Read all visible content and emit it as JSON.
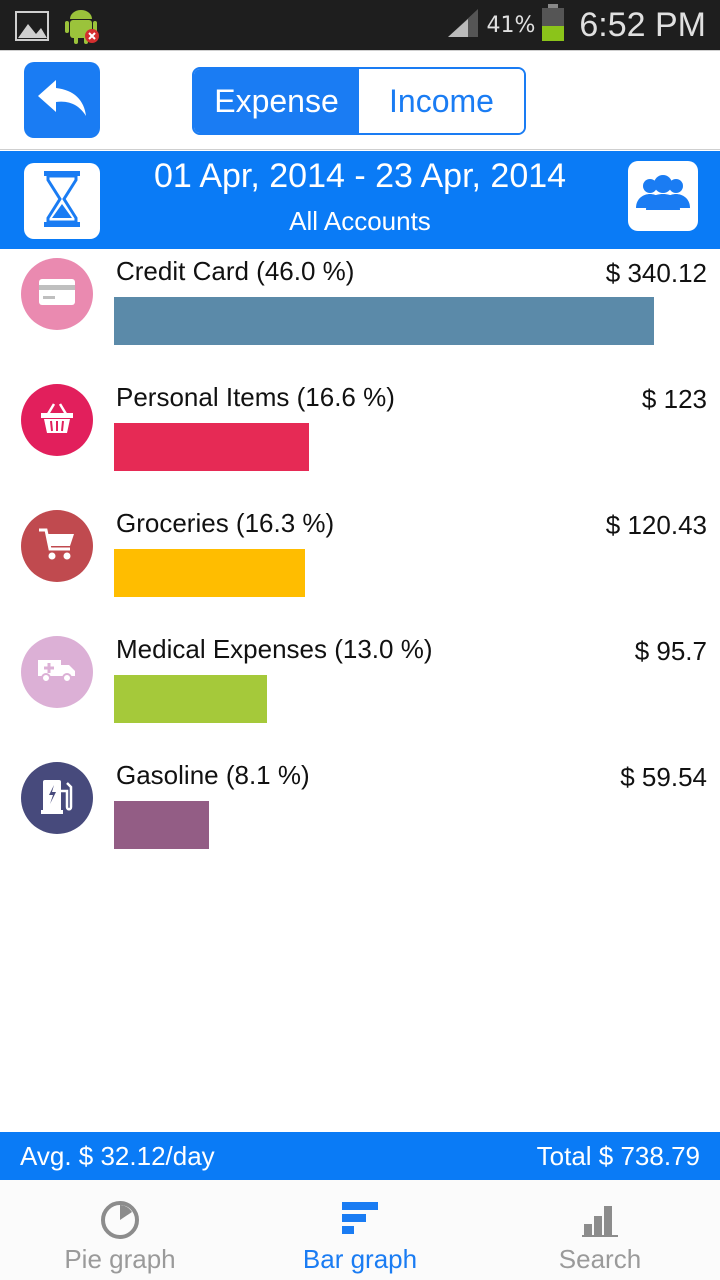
{
  "status_bar": {
    "battery_percent": "41%",
    "time": "6:52 PM",
    "icons": [
      "image-icon",
      "android-debug-icon",
      "signal-icon",
      "battery-icon"
    ]
  },
  "top_bar": {
    "back_icon": "undo-arrow-icon",
    "tabs": [
      {
        "label": "Expense",
        "active": true
      },
      {
        "label": "Income",
        "active": false
      }
    ]
  },
  "period": {
    "date_range": "01 Apr, 2014 - 23 Apr, 2014",
    "accounts": "All Accounts",
    "left_icon": "hourglass-icon",
    "right_icon": "people-icon"
  },
  "categories": [
    {
      "label": "Credit Card (46.0 %)",
      "amount": "$ 340.12",
      "percent": 46.0,
      "color": "#5b8aa9",
      "icon_bg": "#ea8ab0",
      "icon": "credit-card-icon"
    },
    {
      "label": "Personal Items (16.6 %)",
      "amount": "$ 123",
      "percent": 16.6,
      "color": "#e62a55",
      "icon_bg": "#e21f5c",
      "icon": "basket-icon"
    },
    {
      "label": "Groceries (16.3 %)",
      "amount": "$ 120.43",
      "percent": 16.3,
      "color": "#ffbd00",
      "icon_bg": "#c04a4f",
      "icon": "cart-icon"
    },
    {
      "label": "Medical Expenses (13.0 %)",
      "amount": "$ 95.7",
      "percent": 13.0,
      "color": "#a5c93a",
      "icon_bg": "#dcb0d6",
      "icon": "ambulance-icon"
    },
    {
      "label": "Gasoline (8.1 %)",
      "amount": "$ 59.54",
      "percent": 8.1,
      "color": "#935d85",
      "icon_bg": "#474a7c",
      "icon": "fuel-pump-icon"
    }
  ],
  "summary": {
    "avg": "Avg.  $ 32.12/day",
    "total": "Total  $ 738.79"
  },
  "bottom_nav": [
    {
      "label": "Pie graph",
      "icon": "pie-chart-icon",
      "active": false
    },
    {
      "label": "Bar graph",
      "icon": "bar-graph-icon",
      "active": true
    },
    {
      "label": "Search",
      "icon": "search-chart-icon",
      "active": false
    }
  ],
  "accent_color": "#1a7cf3"
}
